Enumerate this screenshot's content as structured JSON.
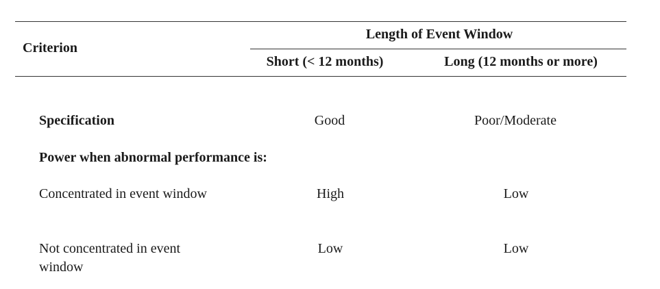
{
  "table": {
    "header": {
      "criterion_label": "Criterion",
      "group_label": "Length of Event Window",
      "columns": [
        "Short (< 12 months)",
        "Long (12 months or more)"
      ]
    },
    "rows": [
      {
        "label": "Specification",
        "short": "Good",
        "long": "Poor/Moderate"
      },
      {
        "section": "Power when abnormal performance is:"
      },
      {
        "label": "Concentrated in event window",
        "short": "High",
        "long": "Low"
      },
      {
        "label": "Not concentrated in event window",
        "short": "Low",
        "long": "Low"
      }
    ]
  }
}
